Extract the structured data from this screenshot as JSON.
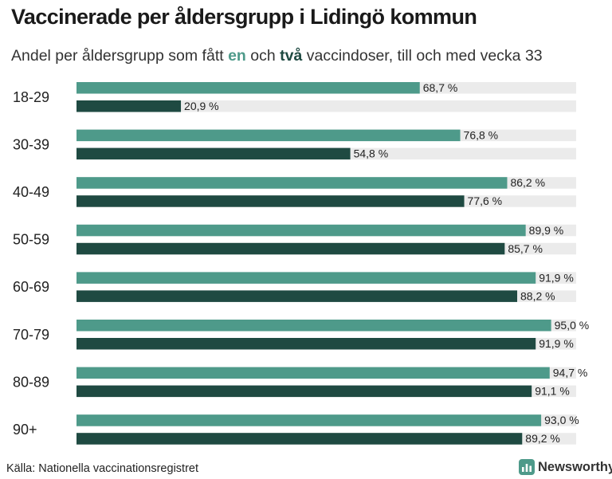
{
  "header": {
    "title": "Vaccinerade per åldersgrupp i Lidingö kommun",
    "subtitle_pre": "Andel per åldersgrupp som fått ",
    "subtitle_key1": "en",
    "subtitle_mid": " och ",
    "subtitle_key2": "två",
    "subtitle_post": " vaccindoser, till och med vecka 33"
  },
  "footer": {
    "source": "Källa: Nationella vaccinationsregistret",
    "brand": "Newsworthy"
  },
  "colors": {
    "one_dose": "#4e9a8a",
    "two_doses": "#1f4a42",
    "track": "#ebebeb",
    "brand_icon": "#4e9a8a"
  },
  "chart_data": {
    "type": "bar",
    "orientation": "horizontal",
    "title": "Vaccinerade per åldersgrupp i Lidingö kommun",
    "subtitle": "Andel per åldersgrupp som fått en och två vaccindoser, till och med vecka 33",
    "categories": [
      "18-29",
      "30-39",
      "40-49",
      "50-59",
      "60-69",
      "70-79",
      "80-89",
      "90+"
    ],
    "xlim": [
      0,
      100
    ],
    "grid": false,
    "series": [
      {
        "key": "one_dose",
        "values": [
          68.7,
          76.8,
          86.2,
          89.9,
          91.9,
          95.0,
          94.7,
          93.0
        ],
        "labels": [
          "68,7 %",
          "76,8 %",
          "86,2 %",
          "89,9 %",
          "91,9 %",
          "95,0 %",
          "94,7 %",
          "93,0 %"
        ]
      },
      {
        "key": "two_doses",
        "values": [
          20.9,
          54.8,
          77.6,
          85.7,
          88.2,
          91.9,
          91.1,
          89.2
        ],
        "labels": [
          "20,9 %",
          "54,8 %",
          "77,6 %",
          "85,7 %",
          "88,2 %",
          "91,9 %",
          "91,1 %",
          "89,2 %"
        ]
      }
    ]
  }
}
